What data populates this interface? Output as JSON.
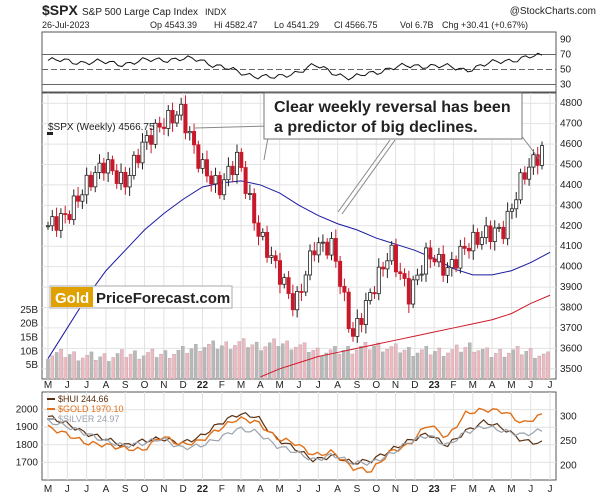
{
  "header": {
    "symbol": "$SPX",
    "name": "S&P 500 Large Cap Index",
    "exchange": "INDX",
    "date": "26-Jul-2023",
    "open": "Op 4543.39",
    "high": "Hi 4582.47",
    "low": "Lo 4541.29",
    "close": "Cl 4566.75",
    "volume": "Vol 6.7B",
    "change": "Chg +30.41 (+0.67%)",
    "credit": "@StockCharts.com"
  },
  "annotation": {
    "line1": "Clear weekly reversal  has been",
    "line2": "a predictor of big declines."
  },
  "watermark": {
    "gold": "Gold",
    "rest": "PriceForecast.com"
  },
  "colors": {
    "up": "#222222",
    "down": "#c9182a",
    "ma_blue": "#1a1aa0",
    "ma_red": "#d0182a",
    "vol_down": "#f0b8c0",
    "vol_up": "#b8b8b8",
    "hui": "#5a3010",
    "gold": "#e0701a",
    "silver": "#9aa2ac"
  },
  "x_axis": {
    "months": [
      "M",
      "J",
      "J",
      "A",
      "S",
      "O",
      "N",
      "D",
      "22",
      "F",
      "M",
      "A",
      "M",
      "J",
      "J",
      "A",
      "S",
      "O",
      "N",
      "D",
      "23",
      "F",
      "M",
      "A",
      "M",
      "J",
      "J"
    ]
  },
  "chart_data": [
    {
      "type": "line",
      "panel": "indicator",
      "ylim": [
        20,
        100
      ],
      "yticks": [
        90,
        70,
        50,
        30
      ],
      "reference_lines": [
        70,
        50,
        30
      ],
      "x": [
        "2021-05",
        "2021-07",
        "2021-09",
        "2021-11",
        "2022-01",
        "2022-03",
        "2022-05",
        "2022-07",
        "2022-09",
        "2022-11",
        "2023-01",
        "2023-03",
        "2023-05",
        "2023-07"
      ],
      "values": [
        62,
        60,
        58,
        64,
        63,
        46,
        38,
        55,
        38,
        52,
        56,
        50,
        62,
        68
      ]
    },
    {
      "type": "candlestick",
      "panel": "price",
      "label": "$SPX (Weekly) 4566.75",
      "ylim": [
        3450,
        4850
      ],
      "yticks": [
        3500,
        3600,
        3700,
        3800,
        3900,
        4000,
        4100,
        4200,
        4300,
        4400,
        4500,
        4600,
        4700,
        4800
      ],
      "x": [
        "2021-05",
        "2021-06",
        "2021-07",
        "2021-08",
        "2021-09",
        "2021-10",
        "2021-11",
        "2021-12",
        "2022-01",
        "2022-02",
        "2022-03",
        "2022-04",
        "2022-05",
        "2022-06",
        "2022-07",
        "2022-08",
        "2022-09",
        "2022-10",
        "2022-11",
        "2022-12",
        "2023-01",
        "2023-02",
        "2023-03",
        "2023-04",
        "2023-05",
        "2023-06",
        "2023-07"
      ],
      "series": [
        {
          "name": "$SPX",
          "values": [
            4200,
            4250,
            4400,
            4510,
            4400,
            4600,
            4700,
            4760,
            4500,
            4380,
            4540,
            4180,
            4000,
            3800,
            4100,
            4100,
            3650,
            3870,
            4080,
            3860,
            4070,
            3980,
            4100,
            4160,
            4180,
            4450,
            4566.75
          ]
        },
        {
          "name": "MA blue",
          "values": [
            3550,
            3700,
            3850,
            3980,
            4080,
            4180,
            4260,
            4330,
            4390,
            4410,
            4420,
            4400,
            4360,
            4300,
            4250,
            4210,
            4180,
            4140,
            4110,
            4080,
            4040,
            3990,
            3960,
            3960,
            3980,
            4020,
            4070
          ]
        },
        {
          "name": "MA red",
          "values": [
            null,
            null,
            null,
            null,
            null,
            null,
            null,
            null,
            null,
            null,
            null,
            3460,
            3500,
            3530,
            3560,
            3580,
            3600,
            3620,
            3640,
            3660,
            3680,
            3700,
            3720,
            3740,
            3770,
            3820,
            3860
          ]
        }
      ],
      "volume": {
        "yticks_label": [
          "25B",
          "20B",
          "15B",
          "10B",
          "5B"
        ],
        "ylim": [
          0,
          26
        ],
        "values": [
          9,
          9,
          8,
          8,
          9,
          9,
          9,
          10,
          12,
          12,
          13,
          12,
          13,
          12,
          10,
          10,
          11,
          12,
          11,
          10,
          10,
          10,
          12,
          9,
          10,
          10,
          8
        ]
      }
    },
    {
      "type": "line",
      "panel": "comparison",
      "left_ylim": [
        1600,
        2100
      ],
      "left_yticks": [
        2000,
        1900,
        1800,
        1700
      ],
      "right_ylim": [
        170,
        350
      ],
      "right_yticks": [
        300,
        250,
        200
      ],
      "x": [
        "2021-05",
        "2021-06",
        "2021-07",
        "2021-08",
        "2021-09",
        "2021-10",
        "2021-11",
        "2021-12",
        "2022-01",
        "2022-02",
        "2022-03",
        "2022-04",
        "2022-05",
        "2022-06",
        "2022-07",
        "2022-08",
        "2022-09",
        "2022-10",
        "2022-11",
        "2022-12",
        "2023-01",
        "2023-02",
        "2023-03",
        "2023-04",
        "2023-05",
        "2023-06",
        "2023-07"
      ],
      "series": [
        {
          "name": "$HUI 244.66",
          "axis": "right",
          "values": [
            300,
            285,
            265,
            255,
            240,
            250,
            255,
            245,
            258,
            285,
            305,
            300,
            255,
            235,
            210,
            220,
            205,
            210,
            230,
            250,
            265,
            240,
            270,
            290,
            275,
            250,
            245
          ]
        },
        {
          "name": "$GOLD 1970.10",
          "axis": "left",
          "values": [
            1900,
            1860,
            1810,
            1800,
            1780,
            1770,
            1850,
            1800,
            1820,
            1890,
            1950,
            1930,
            1840,
            1810,
            1740,
            1760,
            1670,
            1650,
            1760,
            1800,
            1920,
            1840,
            1980,
            2000,
            1990,
            1920,
            1970
          ]
        },
        {
          "name": "$SILVER 24.97",
          "axis": "right",
          "values": [
            290,
            280,
            265,
            250,
            240,
            245,
            255,
            235,
            240,
            255,
            275,
            268,
            240,
            228,
            210,
            222,
            205,
            205,
            222,
            248,
            262,
            240,
            268,
            280,
            270,
            262,
            272
          ]
        }
      ]
    }
  ]
}
